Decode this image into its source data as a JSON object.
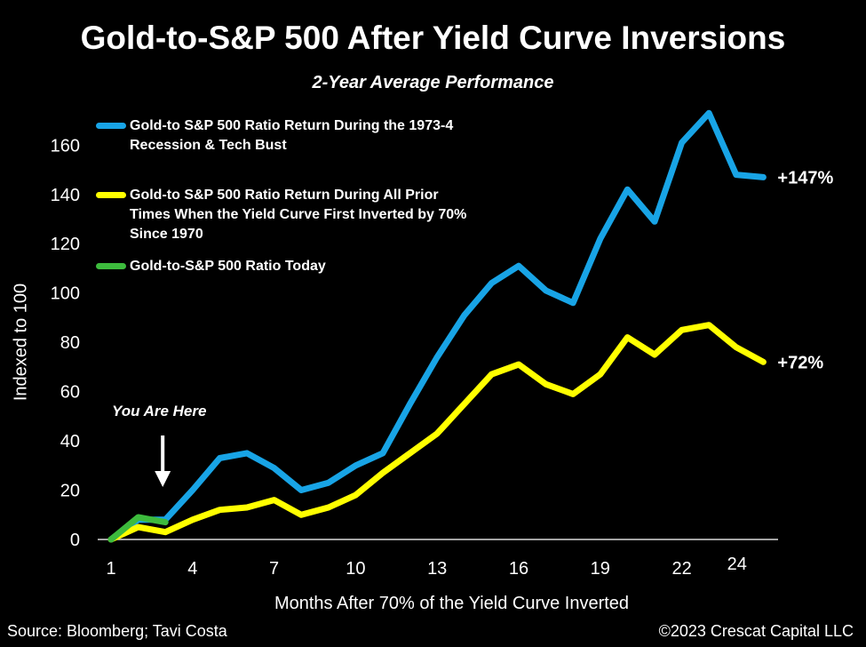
{
  "chart_data": {
    "type": "line",
    "title": "Gold-to-S&P 500 After Yield Curve Inversions",
    "subtitle": "2-Year Average Performance",
    "xlabel": "Months After 70% of the Yield Curve Inverted",
    "ylabel": "Indexed to 100",
    "x_ticks": [
      1,
      4,
      7,
      10,
      13,
      16,
      19,
      22,
      24
    ],
    "y_ticks": [
      0,
      20,
      40,
      60,
      80,
      100,
      120,
      140,
      160
    ],
    "xlim": [
      1,
      24
    ],
    "ylim": [
      0,
      175
    ],
    "grid": false,
    "legend_position": "top-left",
    "series": [
      {
        "name": "Gold-to S&P 500 Ratio Return During the 1973-4 Recession & Tech Bust",
        "color": "#18a4e6",
        "x": [
          1,
          2,
          3,
          4,
          5,
          6,
          7,
          8,
          9,
          10,
          11,
          12,
          13,
          14,
          15,
          16,
          17,
          18,
          19,
          20,
          21,
          22,
          23,
          24,
          25
        ],
        "y": [
          0,
          8,
          8,
          20,
          33,
          35,
          29,
          20,
          23,
          30,
          35,
          55,
          74,
          91,
          104,
          111,
          101,
          96,
          122,
          142,
          129,
          161,
          173,
          148,
          147
        ]
      },
      {
        "name": "Gold-to S&P 500 Ratio Return During All Prior Times When the Yield Curve First Inverted by 70% Since 1970",
        "color": "#ffff00",
        "x": [
          1,
          2,
          3,
          4,
          5,
          6,
          7,
          8,
          9,
          10,
          11,
          12,
          13,
          14,
          15,
          16,
          17,
          18,
          19,
          20,
          21,
          22,
          23,
          24,
          25
        ],
        "y": [
          0,
          5,
          3,
          8,
          12,
          13,
          16,
          10,
          13,
          18,
          27,
          35,
          43,
          55,
          67,
          71,
          63,
          59,
          67,
          82,
          75,
          85,
          87,
          78,
          72
        ]
      },
      {
        "name": "Gold-to-S&P 500 Ratio Today",
        "color": "#3dbb3d",
        "x": [
          1,
          2,
          3
        ],
        "y": [
          0,
          9,
          7
        ]
      }
    ],
    "end_labels": [
      {
        "series": 0,
        "text": "+147%"
      },
      {
        "series": 1,
        "text": "+72%"
      }
    ],
    "annotation": {
      "text": "You Are Here",
      "x": 3,
      "arrow": "down"
    }
  },
  "source": "Source: Bloomberg; Tavi Costa",
  "copyright": "©2023 Crescat Capital LLC"
}
